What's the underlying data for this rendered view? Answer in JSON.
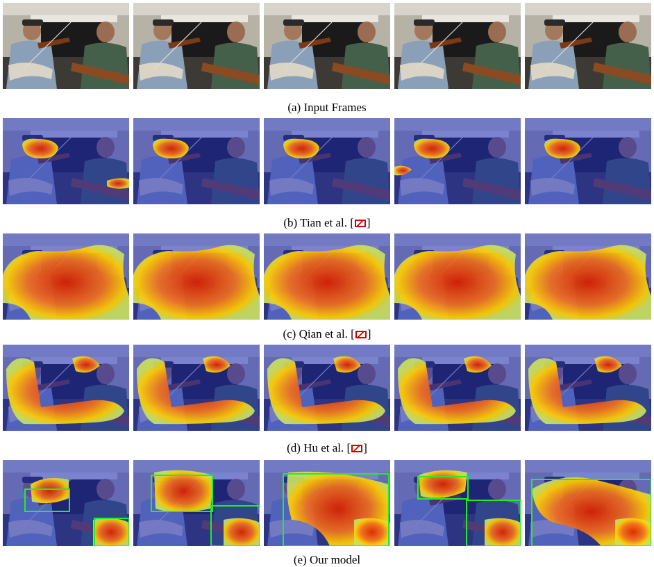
{
  "figure": {
    "rows": [
      {
        "id": "input",
        "caption_prefix": "(a)",
        "caption_text": "Input Frames",
        "overlay": "none",
        "boxes": false,
        "cite": ""
      },
      {
        "id": "tian",
        "caption_prefix": "(b)",
        "caption_text": "Tian et al. [",
        "overlay": "blue-heatmap-local",
        "boxes": false,
        "cite": "]"
      },
      {
        "id": "qian",
        "caption_prefix": "(c)",
        "caption_text": "Qian et al. [",
        "overlay": "blue-heatmap-wide",
        "boxes": false,
        "cite": "]"
      },
      {
        "id": "hu",
        "caption_prefix": "(d)",
        "caption_text": "Hu et al. [",
        "overlay": "blue-heatmap-ushape",
        "boxes": false,
        "cite": "]"
      },
      {
        "id": "ours",
        "caption_prefix": "(e)",
        "caption_text": "Our model",
        "overlay": "blue-heatmap-boxes",
        "boxes": true,
        "cite": ""
      }
    ],
    "frames_per_row": 5,
    "colors": {
      "box": "#22ee22",
      "hot": "#dd2200",
      "warm": "#ffd000",
      "cool": "#2030a0"
    }
  }
}
